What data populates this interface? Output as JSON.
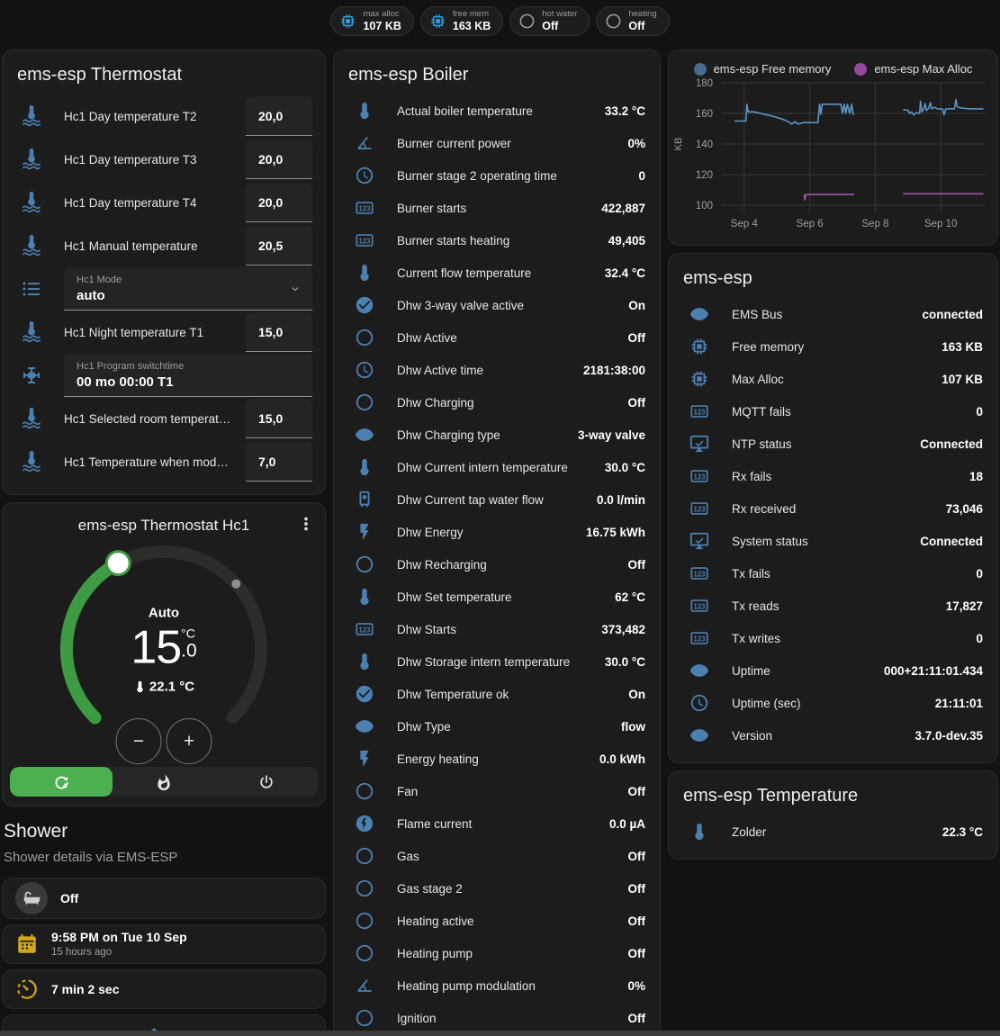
{
  "badges": [
    {
      "label": "max alloc",
      "value": "107 KB",
      "icon": "chip",
      "icon_cls": "blue"
    },
    {
      "label": "free mem",
      "value": "163 KB",
      "icon": "chip",
      "icon_cls": "blue"
    },
    {
      "label": "hot water",
      "value": "Off",
      "icon": "circle-outline",
      "icon_cls": "gray"
    },
    {
      "label": "heating",
      "value": "Off",
      "icon": "circle-outline",
      "icon_cls": "gray"
    }
  ],
  "thermostat_card": {
    "title": "ems-esp Thermostat",
    "rows": [
      {
        "cls": "",
        "icon": "thermometer-water",
        "label": "Hc1 Day temperature T2",
        "value": "20,0"
      },
      {
        "cls": "",
        "icon": "thermometer-water",
        "label": "Hc1 Day temperature T3",
        "value": "20,0"
      },
      {
        "cls": "",
        "icon": "thermometer-water",
        "label": "Hc1 Day temperature T4",
        "value": "20,0"
      },
      {
        "cls": "",
        "icon": "thermometer-water",
        "label": "Hc1 Manual temperature",
        "value": "20,5"
      },
      {
        "cls": "wide select",
        "icon": "list",
        "field_label": "Hc1 Mode",
        "value": "auto"
      },
      {
        "cls": "",
        "icon": "thermometer-water",
        "label": "Hc1 Night temperature T1",
        "value": "15,0"
      },
      {
        "cls": "wide",
        "icon": "valve",
        "field_label": "Hc1 Program switchtime",
        "value": "00 mo 00:00 T1"
      },
      {
        "cls": "",
        "icon": "thermometer-water",
        "label": "Hc1 Selected room temperat…",
        "value": "15,0"
      },
      {
        "cls": "",
        "icon": "thermometer-water",
        "label": "Hc1 Temperature when mod…",
        "value": "7,0"
      }
    ]
  },
  "hc1_card": {
    "title": "ems-esp Thermostat Hc1",
    "mode_label": "Auto",
    "target_int": "15",
    "target_unit": "°C",
    "target_dec": ".0",
    "current_temp": "22.1 °C",
    "decrease_label": "−",
    "increase_label": "+",
    "modes": [
      {
        "icon": "auto-mode",
        "cls": "active"
      },
      {
        "icon": "fire",
        "cls": ""
      },
      {
        "icon": "power",
        "cls": ""
      }
    ]
  },
  "shower": {
    "title": "Shower",
    "subtitle": "Shower details via EMS-ESP",
    "items": [
      {
        "icon": "bathtub",
        "icon_cls": "badge-circle",
        "cls": "",
        "value": "Off",
        "secondary": ""
      },
      {
        "icon": "calendar",
        "icon_cls": "yellow",
        "cls": "",
        "value": "9:58 PM on Tue 10 Sep",
        "secondary": "15 hours ago"
      },
      {
        "icon": "timer",
        "icon_cls": "yellow",
        "cls": "",
        "value": "7 min 2 sec",
        "secondary": ""
      },
      {
        "icon": "snowflake-alert",
        "icon_cls": "blue",
        "cls": "center",
        "value": "",
        "secondary": ""
      }
    ]
  },
  "boiler_card": {
    "title": "ems-esp Boiler",
    "rows": [
      {
        "icon": "thermometer",
        "label": "Actual boiler temperature",
        "value": "33.2 °C"
      },
      {
        "icon": "angle-acute",
        "label": "Burner current power",
        "value": "0%"
      },
      {
        "icon": "clock",
        "label": "Burner stage 2 operating time",
        "value": "0"
      },
      {
        "icon": "counter",
        "label": "Burner starts",
        "value": "422,887"
      },
      {
        "icon": "counter",
        "label": "Burner starts heating",
        "value": "49,405"
      },
      {
        "icon": "thermometer",
        "label": "Current flow temperature",
        "value": "32.4 °C"
      },
      {
        "icon": "check-circle",
        "label": "Dhw 3-way valve active",
        "value": "On"
      },
      {
        "icon": "circle-outline",
        "label": "Dhw Active",
        "value": "Off"
      },
      {
        "icon": "clock",
        "label": "Dhw Active time",
        "value": "2181:38:00"
      },
      {
        "icon": "circle-outline",
        "label": "Dhw Charging",
        "value": "Off"
      },
      {
        "icon": "eye",
        "label": "Dhw Charging type",
        "value": "3-way valve"
      },
      {
        "icon": "thermometer",
        "label": "Dhw Current intern temperature",
        "value": "30.0 °C"
      },
      {
        "icon": "water-boiler",
        "label": "Dhw Current tap water flow",
        "value": "0.0 l/min"
      },
      {
        "icon": "flash",
        "label": "Dhw Energy",
        "value": "16.75 kWh"
      },
      {
        "icon": "circle-outline",
        "label": "Dhw Recharging",
        "value": "Off"
      },
      {
        "icon": "thermometer",
        "label": "Dhw Set temperature",
        "value": "62 °C"
      },
      {
        "icon": "counter",
        "label": "Dhw Starts",
        "value": "373,482"
      },
      {
        "icon": "thermometer",
        "label": "Dhw Storage intern temperature",
        "value": "30.0 °C"
      },
      {
        "icon": "check-circle",
        "label": "Dhw Temperature ok",
        "value": "On"
      },
      {
        "icon": "eye",
        "label": "Dhw Type",
        "value": "flow"
      },
      {
        "icon": "flash",
        "label": "Energy heating",
        "value": "0.0 kWh"
      },
      {
        "icon": "circle-outline",
        "label": "Fan",
        "value": "Off"
      },
      {
        "icon": "flash-circle",
        "label": "Flame current",
        "value": "0.0 µA"
      },
      {
        "icon": "circle-outline",
        "label": "Gas",
        "value": "Off"
      },
      {
        "icon": "circle-outline",
        "label": "Gas stage 2",
        "value": "Off"
      },
      {
        "icon": "circle-outline",
        "label": "Heating active",
        "value": "Off"
      },
      {
        "icon": "circle-outline",
        "label": "Heating pump",
        "value": "Off"
      },
      {
        "icon": "angle-acute",
        "label": "Heating pump modulation",
        "value": "0%"
      },
      {
        "icon": "circle-outline",
        "label": "Ignition",
        "value": "Off"
      }
    ]
  },
  "system_card": {
    "title": "ems-esp",
    "rows": [
      {
        "icon": "eye",
        "label": "EMS Bus",
        "value": "connected"
      },
      {
        "icon": "chip",
        "label": "Free memory",
        "value": "163 KB"
      },
      {
        "icon": "chip",
        "label": "Max Alloc",
        "value": "107 KB"
      },
      {
        "icon": "counter",
        "label": "MQTT fails",
        "value": "0"
      },
      {
        "icon": "monitor-check",
        "label": "NTP status",
        "value": "Connected"
      },
      {
        "icon": "counter",
        "label": "Rx fails",
        "value": "18"
      },
      {
        "icon": "counter",
        "label": "Rx received",
        "value": "73,046"
      },
      {
        "icon": "monitor-check",
        "label": "System status",
        "value": "Connected"
      },
      {
        "icon": "counter",
        "label": "Tx fails",
        "value": "0"
      },
      {
        "icon": "counter",
        "label": "Tx reads",
        "value": "17,827"
      },
      {
        "icon": "counter",
        "label": "Tx writes",
        "value": "0"
      },
      {
        "icon": "eye",
        "label": "Uptime",
        "value": "000+21:11:01.434"
      },
      {
        "icon": "clock",
        "label": "Uptime (sec)",
        "value": "21:11:01"
      },
      {
        "icon": "eye",
        "label": "Version",
        "value": "3.7.0-dev.35"
      }
    ]
  },
  "temperature_card": {
    "title": "ems-esp Temperature",
    "rows": [
      {
        "icon": "thermometer",
        "label": "Zolder",
        "value": "22.3 °C"
      }
    ]
  },
  "chart_data": {
    "type": "line",
    "title": "",
    "xlabel": "",
    "ylabel": "KB",
    "ylim": [
      100,
      180
    ],
    "xlim": [
      3.29,
      11.34
    ],
    "grid": true,
    "legend_position": "top",
    "yticks": [
      100,
      120,
      140,
      160,
      180
    ],
    "xticks": [
      {
        "label": "Sep 4",
        "x": 4
      },
      {
        "label": "Sep 6",
        "x": 6
      },
      {
        "label": "Sep 8",
        "x": 8
      },
      {
        "label": "Sep 10",
        "x": 10
      }
    ],
    "series": [
      {
        "name": "ems-esp Free memory",
        "color": "#5d94c4",
        "dot_color": "#456b8d",
        "segments": [
          [
            [
              3.7,
              155
            ],
            [
              4.05,
              155
            ],
            [
              4.08,
              166
            ],
            [
              4.12,
              161
            ],
            [
              4.3,
              161
            ],
            [
              4.6,
              159.5
            ],
            [
              4.9,
              158
            ],
            [
              5.2,
              156
            ],
            [
              5.35,
              154.5
            ],
            [
              5.45,
              153
            ],
            [
              5.55,
              154.5
            ],
            [
              5.65,
              153
            ],
            [
              5.8,
              154
            ],
            [
              6.25,
              154
            ],
            [
              6.3,
              166
            ],
            [
              6.34,
              159.5
            ],
            [
              6.38,
              166
            ],
            [
              6.95,
              166
            ],
            [
              7.0,
              160
            ],
            [
              7.05,
              166
            ],
            [
              7.1,
              160
            ],
            [
              7.15,
              166
            ],
            [
              7.22,
              160
            ],
            [
              7.28,
              166
            ],
            [
              7.33,
              159
            ]
          ],
          [
            [
              8.85,
              162.5
            ],
            [
              9.0,
              162
            ],
            [
              9.05,
              160
            ],
            [
              9.1,
              161
            ],
            [
              9.18,
              159
            ],
            [
              9.25,
              160.5
            ],
            [
              9.35,
              160
            ],
            [
              9.38,
              168
            ],
            [
              9.42,
              161
            ],
            [
              9.48,
              163
            ],
            [
              9.52,
              166.5
            ],
            [
              9.56,
              162
            ],
            [
              9.62,
              163
            ],
            [
              9.68,
              167
            ],
            [
              9.72,
              163
            ],
            [
              9.8,
              164
            ],
            [
              9.9,
              163
            ],
            [
              10.05,
              163
            ],
            [
              10.1,
              159
            ],
            [
              10.15,
              163
            ],
            [
              10.42,
              163
            ],
            [
              10.46,
              169
            ],
            [
              10.5,
              164.5
            ],
            [
              10.6,
              163.5
            ],
            [
              10.9,
              163
            ],
            [
              11.3,
              163
            ]
          ]
        ]
      },
      {
        "name": "ems-esp Max Alloc",
        "color": "#9f57a3",
        "dot_color": "#96479b",
        "segments": [
          [
            [
              5.83,
              107
            ],
            [
              5.85,
              103.5
            ],
            [
              5.88,
              107
            ],
            [
              7.35,
              107
            ]
          ],
          [
            [
              8.85,
              107.5
            ],
            [
              11.3,
              107.5
            ]
          ]
        ]
      }
    ]
  }
}
